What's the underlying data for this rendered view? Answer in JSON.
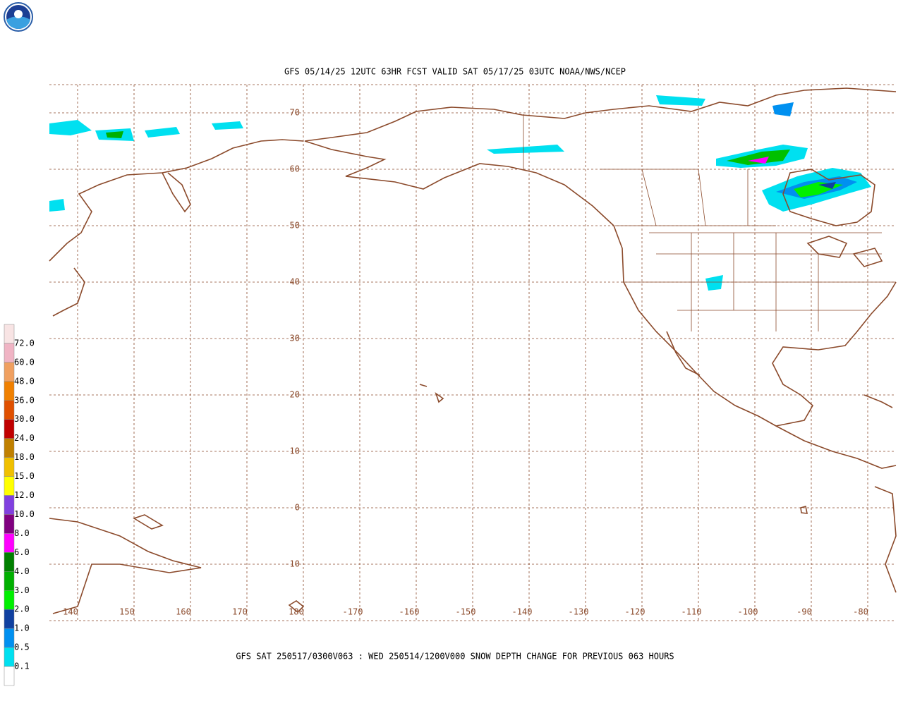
{
  "header": {
    "title": "GFS 05/14/25 12UTC 63HR FCST VALID SAT 05/17/25 03UTC NOAA/NWS/NCEP"
  },
  "map": {
    "lat_labels": [
      "70",
      "60",
      "50",
      "40",
      "30",
      "20",
      "10",
      "0",
      "-10"
    ],
    "lon_labels": [
      "140",
      "150",
      "160",
      "170",
      "180",
      "-170",
      "-160",
      "-150",
      "-140",
      "-130",
      "-120",
      "-110",
      "-100",
      "-90",
      "-80"
    ]
  },
  "legend": {
    "labels": [
      "72.0",
      "60.0",
      "48.0",
      "36.0",
      "30.0",
      "24.0",
      "18.0",
      "15.0",
      "12.0",
      "10.0",
      "8.0",
      "6.0",
      "4.0",
      "3.0",
      "2.0",
      "1.0",
      "0.5",
      "0.1"
    ],
    "colors": [
      "#f8e4e4",
      "#f0b4c4",
      "#f0a060",
      "#f08000",
      "#e05000",
      "#c00000",
      "#c08000",
      "#f0c000",
      "#ffff00",
      "#8040e0",
      "#800080",
      "#ff00ff",
      "#008000",
      "#00b000",
      "#00f000",
      "#1040a0",
      "#0090f0",
      "#00e0f0",
      "#ffffff"
    ]
  },
  "footer": {
    "caption": "GFS SAT 250517/0300V063 : WED 250514/1200V000 SNOW DEPTH CHANGE FOR PREVIOUS 063 HOURS"
  }
}
